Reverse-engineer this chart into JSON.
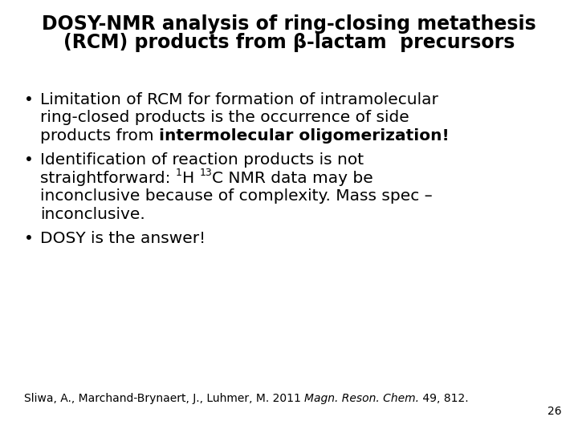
{
  "background_color": "#ffffff",
  "title_line1": "DOSY-NMR analysis of ring-closing metathesis",
  "title_line2": "(RCM) products from β-lactam  precursors",
  "title_fontsize": 17,
  "title_fontweight": "bold",
  "title_color": "#000000",
  "bullet_fontsize": 14.5,
  "bullet_color": "#000000",
  "bullet_symbol": "•",
  "footer_text_normal": "Sliwa, A., Marchand-Brynaert, J., Luhmer, M. 2011 ",
  "footer_text_italic": "Magn. Reson. Chem.",
  "footer_text_rest": " 49, 812.",
  "footer_fontsize": 10,
  "page_number": "26",
  "page_number_fontsize": 10
}
